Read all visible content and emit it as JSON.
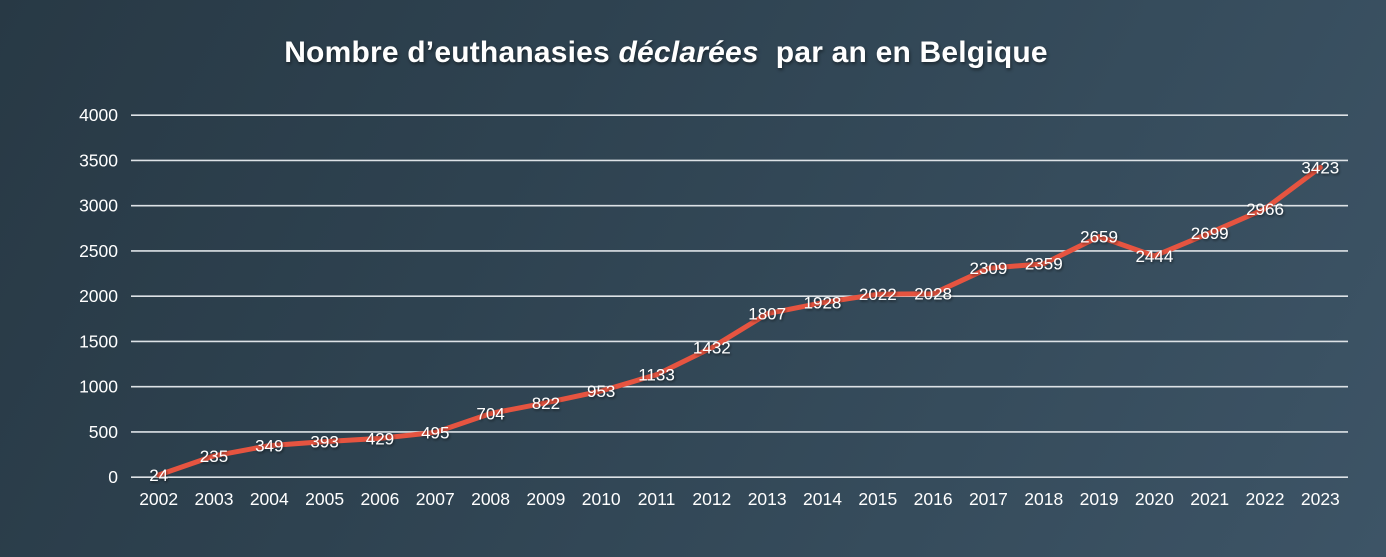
{
  "title": {
    "part1": "Nombre d’euthanasies ",
    "part2_italic": "déclarées",
    "part3": "  par an en Belgique"
  },
  "chart_data": {
    "type": "line",
    "title": "Nombre d’euthanasies déclarées par an en Belgique",
    "categories": [
      "2002",
      "2003",
      "2004",
      "2005",
      "2006",
      "2007",
      "2008",
      "2009",
      "2010",
      "2011",
      "2012",
      "2013",
      "2014",
      "2015",
      "2016",
      "2017",
      "2018",
      "2019",
      "2020",
      "2021",
      "2022",
      "2023"
    ],
    "values": [
      24,
      235,
      349,
      393,
      429,
      495,
      704,
      822,
      953,
      1133,
      1432,
      1807,
      1928,
      2022,
      2028,
      2309,
      2359,
      2659,
      2444,
      2699,
      2966,
      3423
    ],
    "xlabel": "",
    "ylabel": "",
    "ylim": [
      0,
      4000
    ],
    "yticks": [
      0,
      500,
      1000,
      1500,
      2000,
      2500,
      3000,
      3500,
      4000
    ],
    "grid": true,
    "legend_position": "none",
    "data_labels": "center",
    "colors": {
      "line": "#e65440",
      "text": "#ffffff",
      "gridline": "#dde2e6",
      "background_dark": "#283945",
      "background_light": "#3d5466"
    }
  }
}
